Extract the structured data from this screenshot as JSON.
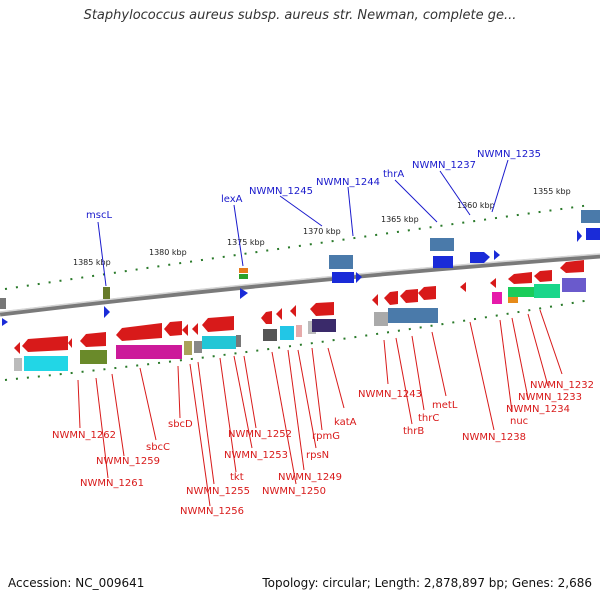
{
  "title": "Staphylococcus aureus subsp. aureus str. Newman, complete ge...",
  "footer": {
    "accession": "Accession: NC_009641",
    "summary": "Topology: circular; Length: 2,878,897 bp; Genes: 2,686"
  },
  "kbp_ticks": [
    "1355 kbp",
    "1360 kbp",
    "1365 kbp",
    "1370 kbp",
    "1375 kbp",
    "1380 kbp",
    "1385 kbp"
  ],
  "colors": {
    "forward_strand": "#1a2bd8",
    "reverse_strand": "#d81a1a",
    "backbone": "#888888"
  },
  "forward_labels": [
    "mscL",
    "lexA",
    "NWMN_1245",
    "NWMN_1244",
    "thrA",
    "NWMN_1237",
    "NWMN_1235"
  ],
  "reverse_labels": [
    "NWMN_1262",
    "NWMN_1261",
    "NWMN_1259",
    "sbcC",
    "sbcD",
    "NWMN_1256",
    "NWMN_1255",
    "tkt",
    "NWMN_1253",
    "NWMN_1252",
    "NWMN_1250",
    "NWMN_1249",
    "rpsN",
    "rpmG",
    "katA",
    "NWMN_1243",
    "thrB",
    "thrC",
    "metL",
    "NWMN_1238",
    "nuc",
    "NWMN_1234",
    "NWMN_1233",
    "NWMN_1232"
  ]
}
